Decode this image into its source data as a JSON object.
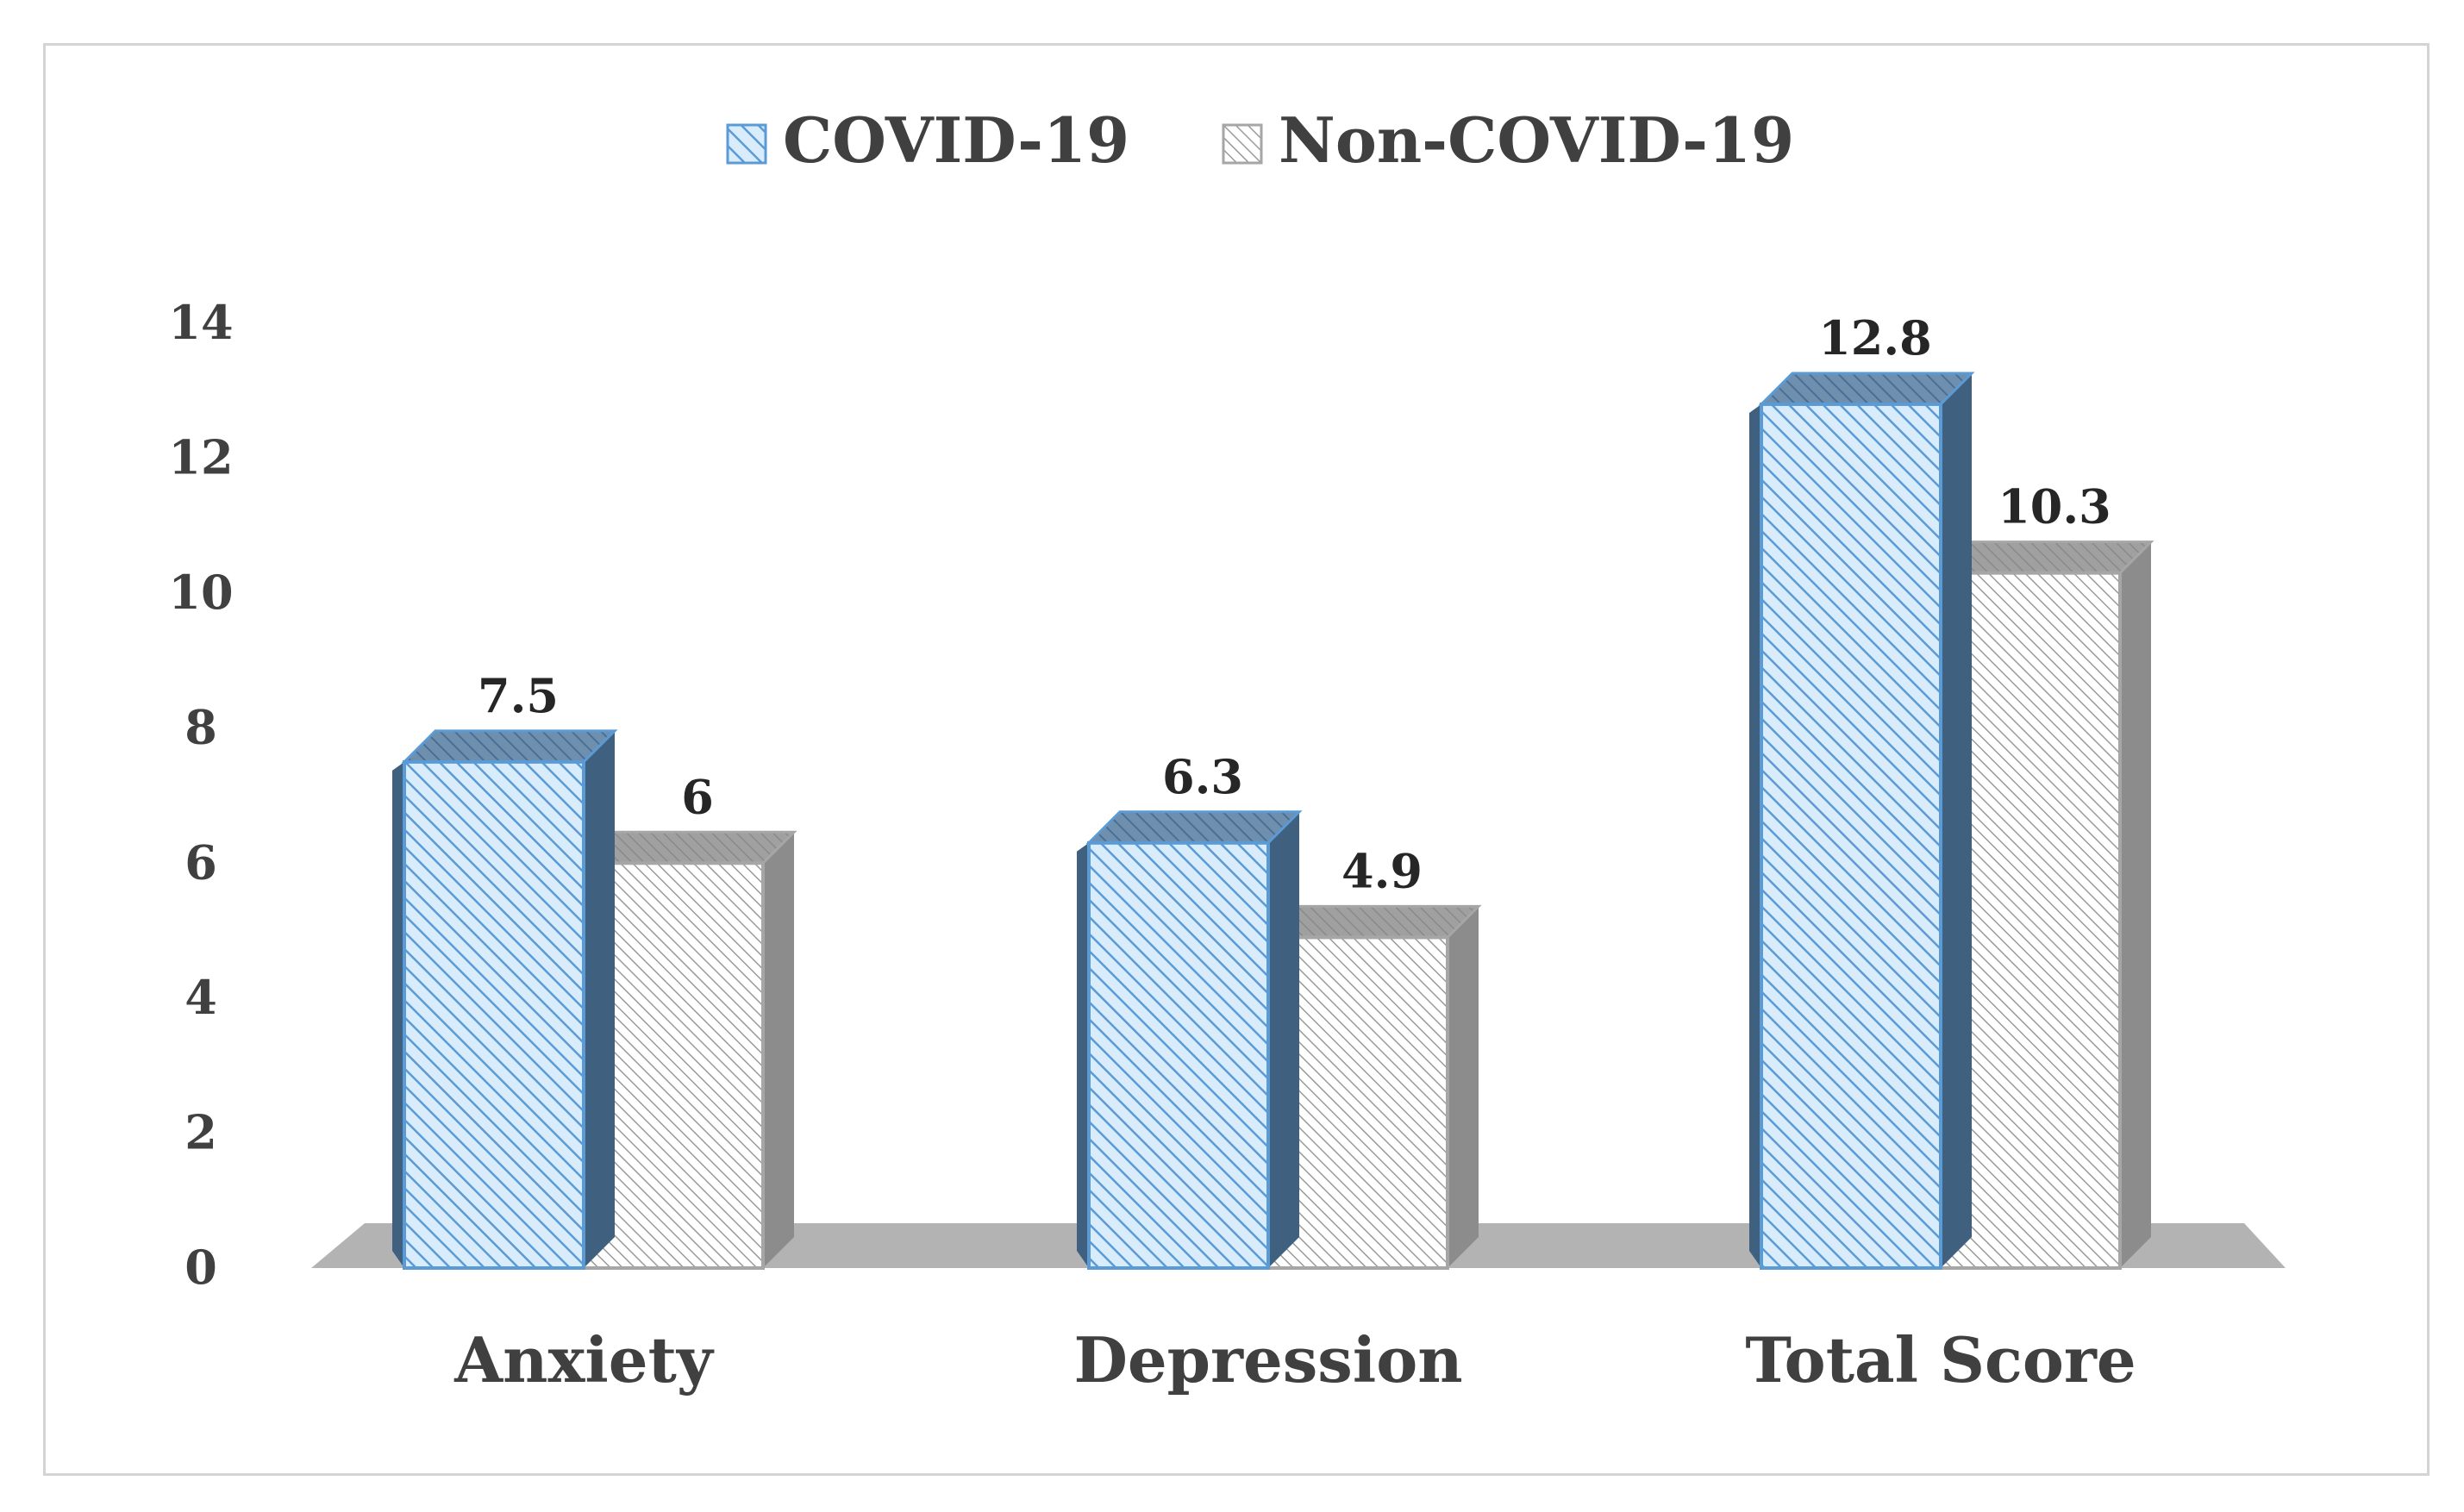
{
  "chart_data": {
    "type": "bar",
    "categories": [
      "Anxiety",
      "Depression",
      "Total Score"
    ],
    "series": [
      {
        "name": "COVID-19",
        "values": [
          7.5,
          6.3,
          12.8
        ],
        "value_labels": [
          "7.5",
          "6.3",
          "12.8"
        ],
        "color": "#5b9bd5",
        "fill": "#d9ecfb"
      },
      {
        "name": "Non-COVID-19",
        "values": [
          6,
          4.9,
          10.3
        ],
        "value_labels": [
          "6",
          "4.9",
          "10.3"
        ],
        "color": "#a6a6a6",
        "fill": "#f2f2f2"
      }
    ],
    "ylim": [
      0,
      14
    ],
    "yticks": [
      "0",
      "2",
      "4",
      "6",
      "8",
      "10",
      "12",
      "14"
    ],
    "title": "",
    "xlabel": "",
    "ylabel": "",
    "legend_position": "top",
    "style": "3d-hatched"
  }
}
